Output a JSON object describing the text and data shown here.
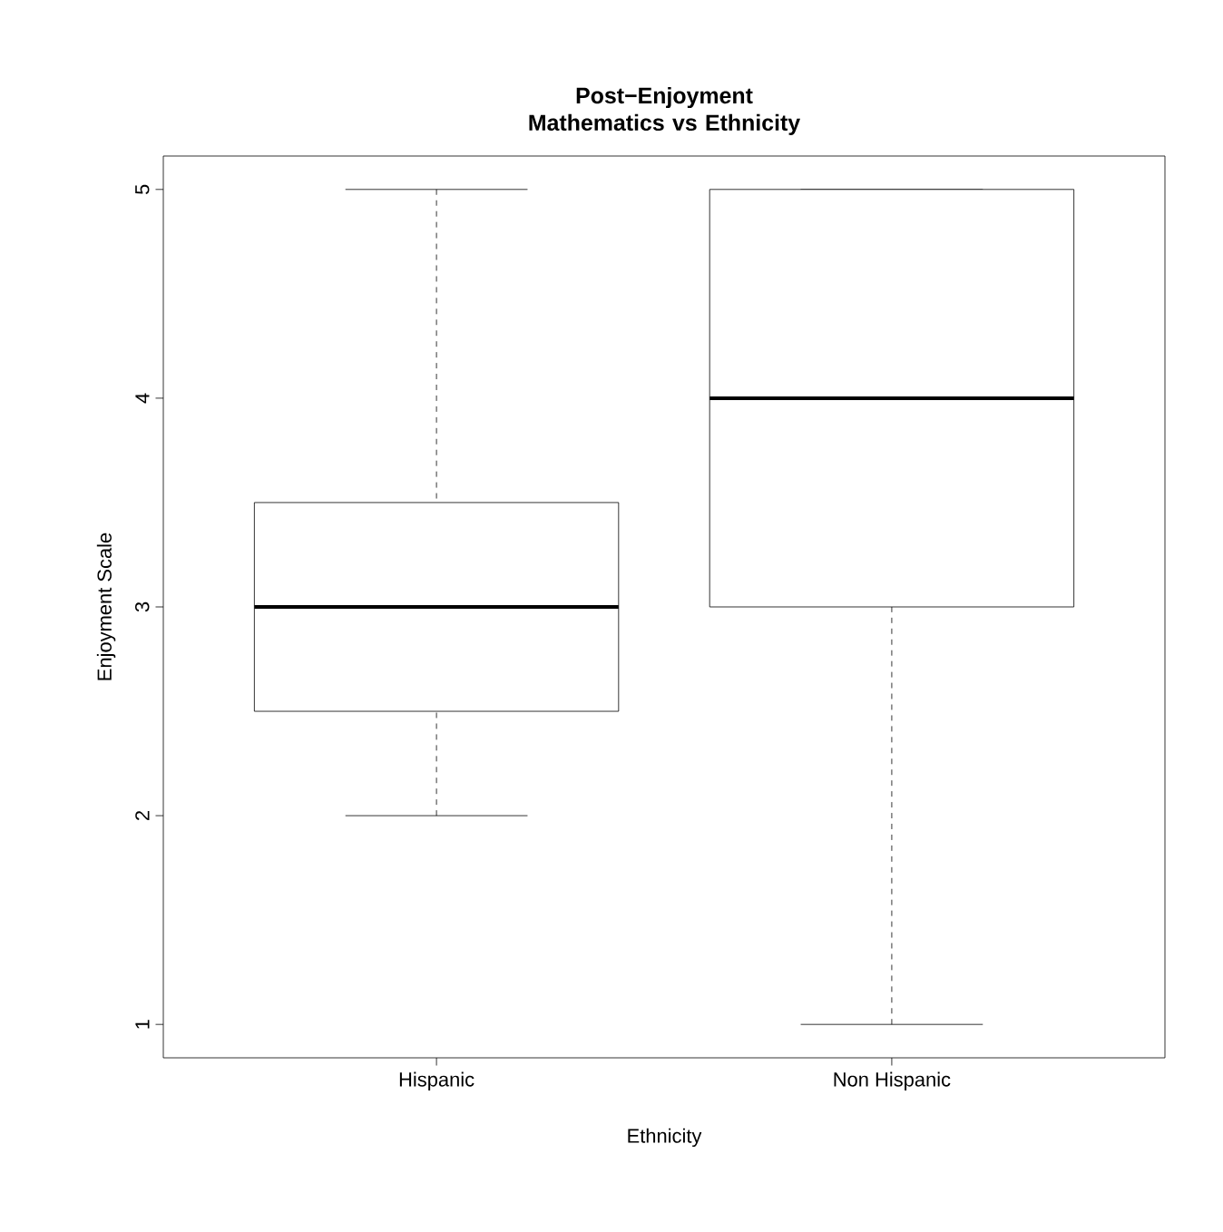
{
  "chart_data": {
    "type": "box",
    "title": "Post−Enjoyment Mathematics vs Ethnicity",
    "xlabel": "Ethnicity",
    "ylabel": "Enjoyment Scale",
    "categories": [
      "Hispanic",
      "Non Hispanic"
    ],
    "boxes": [
      {
        "low": 2,
        "q1": 2.5,
        "median": 3,
        "q3": 3.5,
        "high": 5
      },
      {
        "low": 1,
        "q1": 3,
        "median": 4,
        "q3": 5,
        "high": 5
      }
    ],
    "ylim": [
      0.84,
      5.16
    ],
    "yticks": [
      1,
      2,
      3,
      4,
      5
    ]
  }
}
